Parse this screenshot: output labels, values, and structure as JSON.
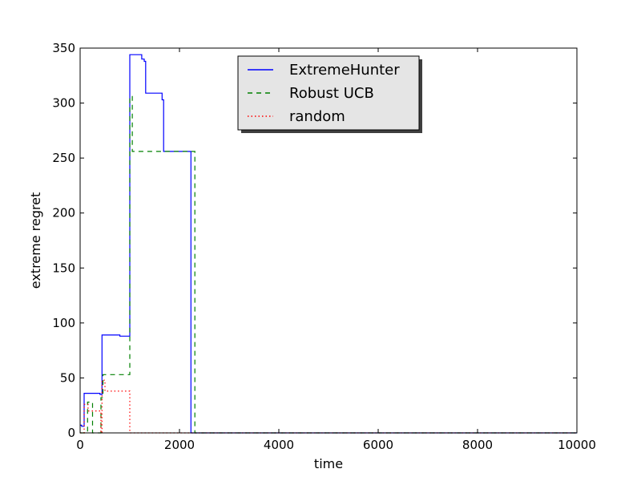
{
  "chart_data": {
    "type": "line",
    "title": "",
    "xlabel": "time",
    "ylabel": "extreme regret",
    "xlim": [
      0,
      10000
    ],
    "ylim": [
      0,
      350
    ],
    "xticks": [
      0,
      2000,
      4000,
      6000,
      8000,
      10000
    ],
    "yticks": [
      0,
      50,
      100,
      150,
      200,
      250,
      300,
      350
    ],
    "grid": false,
    "legend_position": "top-center",
    "series": [
      {
        "name": "ExtremeHunter",
        "color": "#0000ff",
        "style": "solid",
        "points": [
          [
            0,
            7
          ],
          [
            30,
            7
          ],
          [
            30,
            6
          ],
          [
            80,
            6
          ],
          [
            80,
            36
          ],
          [
            400,
            36
          ],
          [
            400,
            35
          ],
          [
            440,
            35
          ],
          [
            440,
            89
          ],
          [
            800,
            89
          ],
          [
            800,
            88
          ],
          [
            1000,
            88
          ],
          [
            1000,
            344
          ],
          [
            1240,
            344
          ],
          [
            1240,
            340
          ],
          [
            1290,
            340
          ],
          [
            1290,
            338
          ],
          [
            1320,
            338
          ],
          [
            1320,
            309
          ],
          [
            1650,
            309
          ],
          [
            1650,
            303
          ],
          [
            1680,
            303
          ],
          [
            1680,
            256
          ],
          [
            2230,
            256
          ],
          [
            2230,
            0
          ],
          [
            10000,
            0
          ]
        ]
      },
      {
        "name": "Robust UCB",
        "color": "#008000",
        "style": "dashed",
        "points": [
          [
            0,
            0
          ],
          [
            150,
            0
          ],
          [
            150,
            28
          ],
          [
            250,
            28
          ],
          [
            250,
            0
          ],
          [
            420,
            0
          ],
          [
            420,
            32
          ],
          [
            460,
            32
          ],
          [
            460,
            53
          ],
          [
            1000,
            53
          ],
          [
            1000,
            306
          ],
          [
            1050,
            306
          ],
          [
            1050,
            256
          ],
          [
            2310,
            256
          ],
          [
            2310,
            0
          ],
          [
            10000,
            0
          ]
        ]
      },
      {
        "name": "random",
        "color": "#ff0000",
        "style": "dotted",
        "points": [
          [
            0,
            0
          ],
          [
            80,
            0
          ],
          [
            80,
            26
          ],
          [
            160,
            26
          ],
          [
            160,
            20
          ],
          [
            420,
            20
          ],
          [
            420,
            0
          ],
          [
            440,
            0
          ],
          [
            440,
            48
          ],
          [
            500,
            48
          ],
          [
            500,
            38
          ],
          [
            1000,
            38
          ],
          [
            1000,
            0
          ],
          [
            10000,
            0
          ]
        ]
      }
    ]
  }
}
